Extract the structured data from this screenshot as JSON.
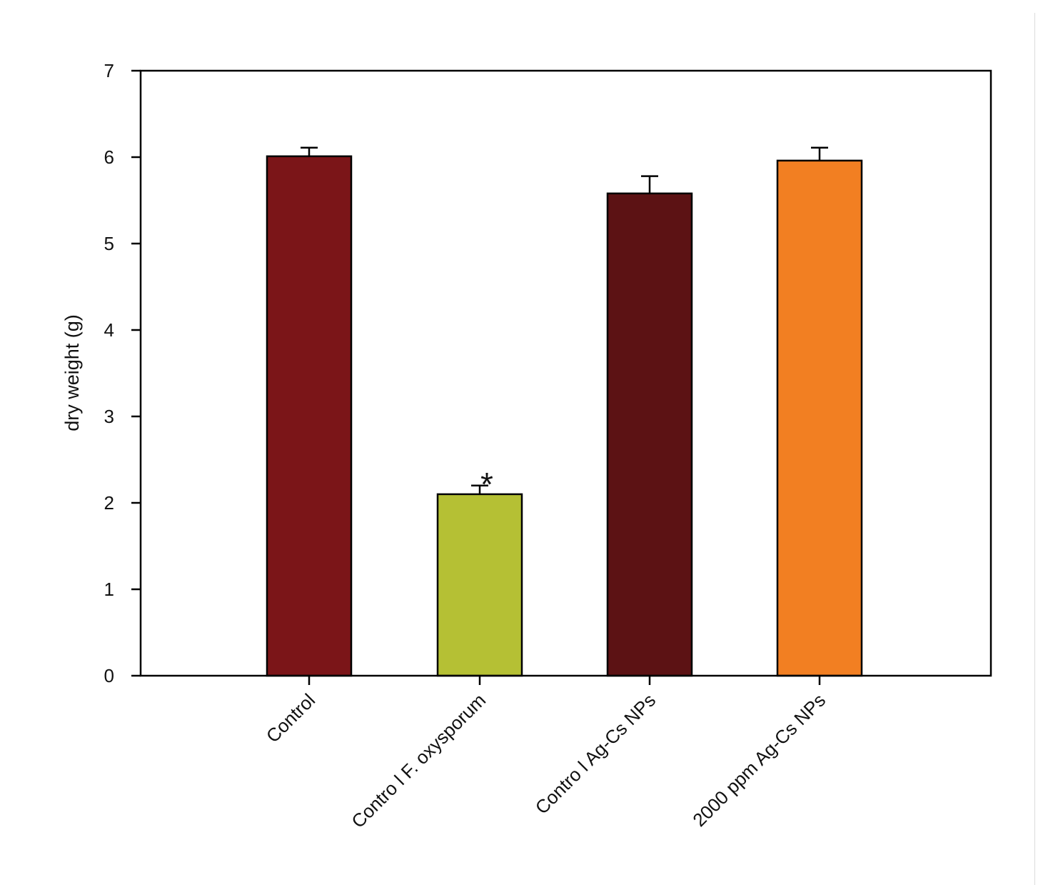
{
  "chart_data": {
    "type": "bar",
    "title": "",
    "xlabel": "",
    "ylabel": "dry weight (g)",
    "ylim": [
      0,
      7
    ],
    "yticks": [
      "0",
      "1",
      "2",
      "3",
      "4",
      "5",
      "6",
      "7"
    ],
    "categories": [
      "Control",
      "Contro l F. oxysporum",
      "Contro l Ag-Cs NPs",
      "2000 ppm Ag-Cs NPs"
    ],
    "values": [
      6.01,
      2.1,
      5.58,
      5.96
    ],
    "errors": [
      0.1,
      0.1,
      0.2,
      0.15
    ],
    "colors": [
      "#7b1518",
      "#b5c034",
      "#5c1214",
      "#f27f22"
    ],
    "annotations": [
      {
        "category_index": 1,
        "text": "*"
      }
    ],
    "grid": false,
    "legend": "none"
  }
}
